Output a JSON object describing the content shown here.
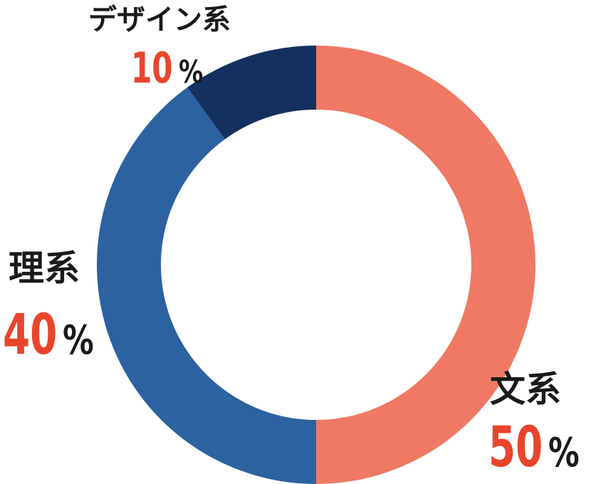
{
  "chart_data": {
    "type": "pie",
    "variant": "donut",
    "slices": [
      {
        "label": "文系",
        "value": 50,
        "percent_text": "50",
        "color": "#ef7965"
      },
      {
        "label": "理系",
        "value": 40,
        "percent_text": "40",
        "color": "#2c62a0"
      },
      {
        "label": "デザイン系",
        "value": 10,
        "percent_text": "10",
        "color": "#14305e"
      }
    ],
    "percent_sign": "%",
    "start": "top",
    "direction": "clockwise",
    "label_colors": {
      "category": "#1a1a1a",
      "number": "#e8452c"
    }
  }
}
